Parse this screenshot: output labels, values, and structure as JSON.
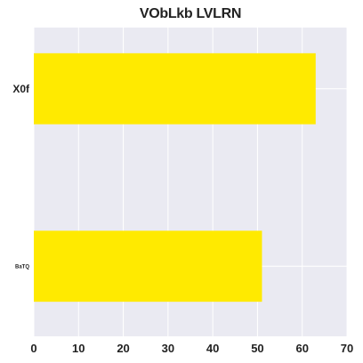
{
  "chart_data": {
    "type": "bar",
    "orientation": "horizontal",
    "title": "VObLkb LVLRN",
    "categories": [
      "X0f",
      "BaTQ"
    ],
    "values": [
      63,
      51
    ],
    "xlabel": "",
    "ylabel": "",
    "xlim": [
      0,
      70
    ],
    "xticks": [
      0,
      10,
      20,
      30,
      40,
      50,
      60,
      70
    ],
    "grid": true,
    "legend": "none",
    "colors": {
      "bar": "#FFEA00",
      "plot_background": "#EAEAF2",
      "grid": "#FFFFFF",
      "text": "#222222"
    }
  }
}
